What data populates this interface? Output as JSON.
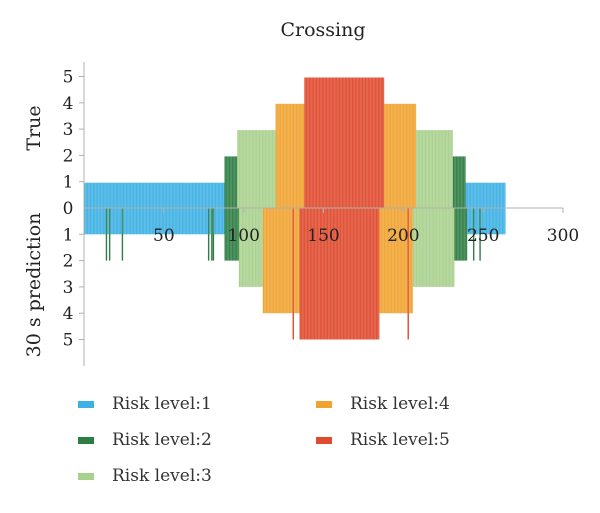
{
  "chart_data": {
    "type": "bar",
    "title": "Crossing",
    "ylabel_top": "True",
    "ylabel_bottom": "30 s prediction",
    "xlim": [
      0,
      300
    ],
    "x_ticks": [
      50,
      100,
      150,
      200,
      250,
      300
    ],
    "y_true_ticks": [
      5,
      4,
      3,
      2,
      1
    ],
    "y_pred_ticks": [
      1,
      2,
      3,
      4,
      5
    ],
    "y_zero_label": "0",
    "grid": false,
    "legend_placement": "bottom",
    "colors": {
      "1": "#3eb1e4",
      "2": "#2e7d44",
      "3": "#a9d18e",
      "4": "#f0a330",
      "5": "#e04a2e"
    },
    "true_segments": [
      {
        "x_start": 0,
        "x_end": 88,
        "level": 1
      },
      {
        "x_start": 88,
        "x_end": 96,
        "level": 2
      },
      {
        "x_start": 96,
        "x_end": 120,
        "level": 3
      },
      {
        "x_start": 120,
        "x_end": 138,
        "level": 4
      },
      {
        "x_start": 138,
        "x_end": 188,
        "level": 5
      },
      {
        "x_start": 188,
        "x_end": 208,
        "level": 4
      },
      {
        "x_start": 208,
        "x_end": 231,
        "level": 3
      },
      {
        "x_start": 231,
        "x_end": 239,
        "level": 2
      },
      {
        "x_start": 239,
        "x_end": 264,
        "level": 1
      }
    ],
    "pred_segments": [
      {
        "x_start": 0,
        "x_end": 88,
        "level": 1
      },
      {
        "x_start": 88,
        "x_end": 97,
        "level": 2
      },
      {
        "x_start": 97,
        "x_end": 112,
        "level": 3
      },
      {
        "x_start": 112,
        "x_end": 135,
        "level": 4
      },
      {
        "x_start": 135,
        "x_end": 185,
        "level": 5
      },
      {
        "x_start": 185,
        "x_end": 206,
        "level": 4
      },
      {
        "x_start": 206,
        "x_end": 232,
        "level": 3
      },
      {
        "x_start": 232,
        "x_end": 240,
        "level": 2
      },
      {
        "x_start": 240,
        "x_end": 264,
        "level": 1
      }
    ],
    "pred_spikes": [
      {
        "x": 14,
        "level": 2
      },
      {
        "x": 16,
        "level": 2
      },
      {
        "x": 24,
        "level": 2
      },
      {
        "x": 78,
        "level": 2
      },
      {
        "x": 80,
        "level": 2
      },
      {
        "x": 81,
        "level": 2
      },
      {
        "x": 131,
        "level": 5
      },
      {
        "x": 203,
        "level": 5
      },
      {
        "x": 244,
        "level": 2
      },
      {
        "x": 248,
        "level": 2
      }
    ],
    "legend": [
      {
        "label": "Risk level:1",
        "level": 1
      },
      {
        "label": "Risk level:2",
        "level": 2
      },
      {
        "label": "Risk level:3",
        "level": 3
      },
      {
        "label": "Risk level:4",
        "level": 4
      },
      {
        "label": "Risk level:5",
        "level": 5
      }
    ]
  }
}
